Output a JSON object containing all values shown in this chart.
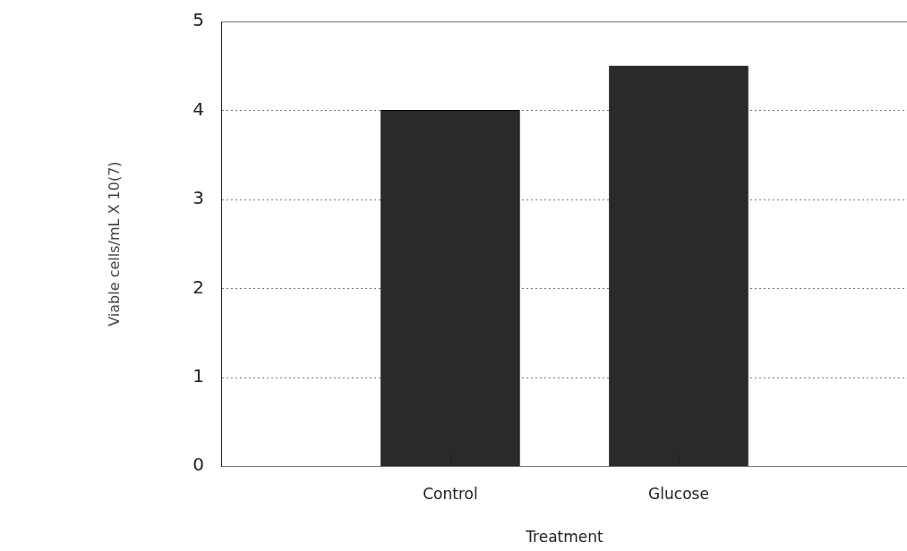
{
  "chart_data": {
    "type": "bar",
    "xlabel": "Treatment",
    "ylabel": "Viable cells/mL X 10(7)",
    "categories": [
      "Control",
      "Glucose"
    ],
    "values": [
      4.0,
      4.5
    ],
    "color": "#2a2a2a",
    "ylim": [
      0,
      5
    ],
    "yticks": [
      0,
      1,
      2,
      3,
      4,
      5
    ],
    "grid": "y",
    "legend": false
  }
}
